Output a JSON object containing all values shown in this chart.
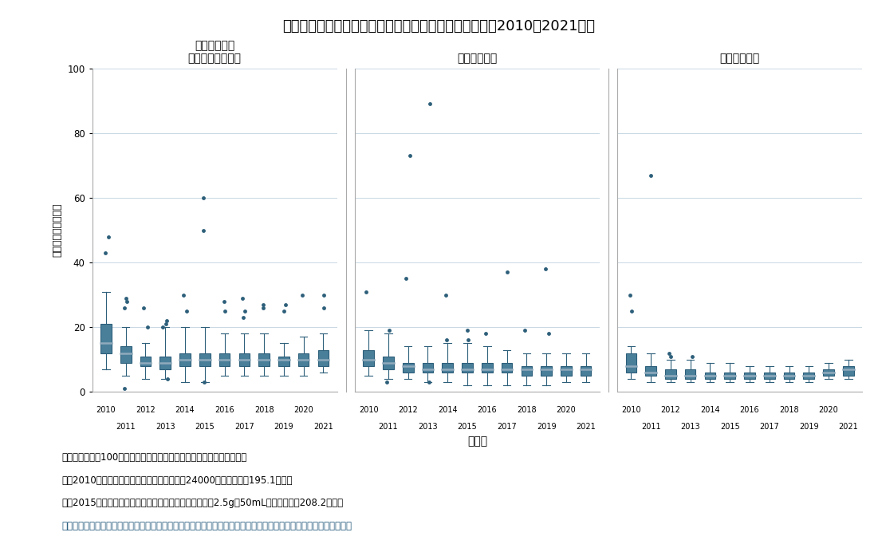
{
  "title": "図３　新医薬品の審査期間（月数）の推移（承認年毎；2010～2021年）",
  "ylabel": "申請～承認（月数）",
  "xlabel": "承認年",
  "panel_titles": [
    "通常承認品目\n（迅速処理除く）",
    "優先審査品目",
    "迅速処理品目"
  ],
  "years": [
    2010,
    2011,
    2012,
    2013,
    2014,
    2015,
    2016,
    2017,
    2018,
    2019,
    2020,
    2021
  ],
  "ylim": [
    0,
    100
  ],
  "yticks": [
    0,
    20,
    40,
    60,
    80,
    100
  ],
  "box_color": "#2d5f7a",
  "box_facecolor": "#4a7f9a",
  "median_color": "#8faabc",
  "background_color": "#ffffff",
  "grid_color": "#c8d8e4",
  "panel1_data": {
    "medians": [
      15,
      12,
      9,
      9,
      10,
      10,
      10,
      10,
      10,
      10,
      10,
      10
    ],
    "q1": [
      12,
      9,
      8,
      7,
      8,
      8,
      8,
      8,
      8,
      8,
      8,
      8
    ],
    "q3": [
      21,
      14,
      11,
      11,
      12,
      12,
      12,
      12,
      12,
      11,
      12,
      13
    ],
    "whislo": [
      7,
      5,
      4,
      4,
      3,
      3,
      5,
      5,
      5,
      5,
      5,
      6
    ],
    "whishi": [
      31,
      20,
      15,
      20,
      20,
      20,
      18,
      18,
      18,
      15,
      17,
      18
    ],
    "fliers_above": [
      [
        43,
        48
      ],
      [
        28,
        29,
        26
      ],
      [
        26,
        20
      ],
      [
        21,
        22,
        20
      ],
      [
        25,
        30
      ],
      [
        50,
        60
      ],
      [
        25,
        28
      ],
      [
        23,
        25,
        29
      ],
      [
        26,
        27
      ],
      [
        25,
        27
      ],
      [
        30
      ],
      [
        26,
        30
      ]
    ],
    "fliers_below": [
      [],
      [
        1
      ],
      [],
      [
        4
      ],
      [],
      [
        3
      ],
      [],
      [],
      [],
      [],
      [],
      []
    ]
  },
  "panel2_data": {
    "medians": [
      10,
      9,
      8,
      7,
      7,
      7,
      7,
      7,
      7,
      7,
      7,
      7
    ],
    "q1": [
      8,
      7,
      6,
      6,
      6,
      6,
      6,
      6,
      5,
      5,
      5,
      5
    ],
    "q3": [
      13,
      11,
      9,
      9,
      9,
      9,
      9,
      9,
      8,
      8,
      8,
      8
    ],
    "whislo": [
      5,
      4,
      4,
      3,
      3,
      2,
      2,
      2,
      2,
      2,
      3,
      3
    ],
    "whishi": [
      19,
      18,
      14,
      14,
      15,
      15,
      14,
      13,
      12,
      12,
      12,
      12
    ],
    "fliers_above": [
      [
        31
      ],
      [
        19
      ],
      [
        35,
        73
      ],
      [
        89
      ],
      [
        16,
        30
      ],
      [
        16,
        19
      ],
      [
        18
      ],
      [
        37
      ],
      [
        19
      ],
      [
        18,
        38
      ],
      [],
      []
    ],
    "fliers_below": [
      [],
      [
        3
      ],
      [],
      [
        3
      ],
      [],
      [],
      [],
      [],
      [],
      [],
      [],
      []
    ]
  },
  "panel3_data": {
    "medians": [
      8,
      6,
      5,
      5,
      5,
      5,
      5,
      5,
      5,
      5,
      6,
      7
    ],
    "q1": [
      6,
      5,
      4,
      4,
      4,
      4,
      4,
      4,
      4,
      4,
      5,
      5
    ],
    "q3": [
      12,
      8,
      7,
      7,
      6,
      6,
      6,
      6,
      6,
      6,
      7,
      8
    ],
    "whislo": [
      4,
      3,
      3,
      3,
      3,
      3,
      3,
      3,
      3,
      3,
      4,
      4
    ],
    "whishi": [
      14,
      12,
      10,
      10,
      9,
      9,
      8,
      8,
      8,
      8,
      9,
      10
    ],
    "fliers_above": [
      [
        25,
        30
      ],
      [
        67
      ],
      [
        11,
        12
      ],
      [
        11
      ],
      [],
      [],
      [],
      [],
      [],
      [],
      [],
      []
    ],
    "fliers_below": [
      [],
      [],
      [],
      [],
      [],
      [],
      [],
      [],
      [],
      [],
      [],
      []
    ]
  },
  "note_lines": [
    [
      "注：審査期間が100ヶ月を超える以下２品目は、グラフから除外した。",
      "black"
    ],
    [
      "　　2010年承認の「エポジン皮下注シリンジ24000」（審査期間195.1ヶ月）",
      "black"
    ],
    [
      "　　2015年承認の「献血ヴェノグロブリンＩＨ５％静注2.5g／50mL」（審査期間208.2ヶ月）",
      "black"
    ],
    [
      "出所：審査報告書、新医薬品の承認品目一覧、添付文書（いずれもＰＭＤＡ）をもとに医薬産業政策研究所にて作成",
      "#1a5276"
    ]
  ]
}
